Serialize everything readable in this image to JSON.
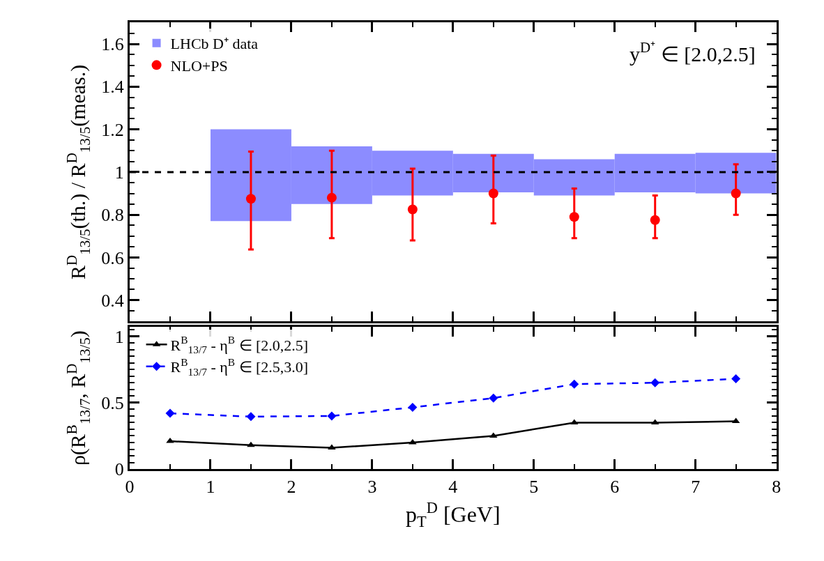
{
  "chart_data": [
    {
      "type": "scatter",
      "ylabel": "R$^{D}$$_{13/5}$(th.) / R$^{D}$$_{13/5}$(meas.)",
      "annotations": [
        "y$^{D⁺}$ ∈ [2.0,2.5]"
      ],
      "xlim": [
        0,
        8
      ],
      "xticks": [
        0,
        1,
        2,
        3,
        4,
        5,
        6,
        7,
        8
      ],
      "ylim": [
        0.3,
        1.7
      ],
      "yticks": [
        0.4,
        0.6,
        0.8,
        1,
        1.2,
        1.4,
        1.6
      ],
      "tick_labels": "y",
      "legend": "top left",
      "ref_lines": [
        {
          "axis": "y",
          "value": 1,
          "color": "#000000",
          "line_style": "dashed"
        }
      ],
      "series": [
        {
          "name": "LHCb D⁺ data",
          "type": "bar",
          "color": "#8c8cff",
          "x": [
            1.5,
            2.5,
            3.5,
            4.5,
            5.5,
            6.5,
            7.5
          ],
          "base": [
            0.77,
            0.85,
            0.89,
            0.905,
            0.89,
            0.905,
            0.9
          ],
          "values": [
            0.43,
            0.27,
            0.21,
            0.18,
            0.17,
            0.18,
            0.19
          ]
        },
        {
          "name": "NLO+PS",
          "type": "scatter",
          "color": "#ff0000",
          "marker": "circle",
          "x": [
            1.5,
            2.5,
            3.5,
            4.5,
            5.5,
            6.5,
            7.5
          ],
          "values": [
            0.875,
            0.88,
            0.825,
            0.9,
            0.79,
            0.775,
            0.9
          ],
          "errors": [
            [
              0.637,
              1.096
            ],
            [
              0.69,
              1.1
            ],
            [
              0.68,
              1.016
            ],
            [
              0.76,
              1.077
            ],
            [
              0.69,
              0.923
            ],
            [
              0.69,
              0.89
            ],
            [
              0.8,
              1.036
            ]
          ]
        }
      ]
    },
    {
      "type": "line",
      "xlabel": "p$_{T}$$^{D}$ [GeV]",
      "ylabel": "ρ(R$^{B}$$_{13/7}$, R$^{D}$$_{13/5}$)",
      "x": [
        0.5,
        1.5,
        2.5,
        3.5,
        4.5,
        5.5,
        6.5,
        7.5
      ],
      "xlim": [
        0,
        8
      ],
      "xticks": [
        0,
        1,
        2,
        3,
        4,
        5,
        6,
        7,
        8
      ],
      "ylim": [
        0,
        1.07
      ],
      "yticks": [
        0,
        0.5,
        1
      ],
      "legend": "top left",
      "series": [
        {
          "name": "R$^{B}$$_{13/7}$ - η$^{B}$ ∈ [2.0,2.5]",
          "color": "#000000",
          "marker": "triangle",
          "line_style": "solid",
          "values": [
            0.21,
            0.18,
            0.16,
            0.2,
            0.25,
            0.35,
            0.35,
            0.36
          ]
        },
        {
          "name": "R$^{B}$$_{13/7}$ - η$^{B}$ ∈ [2.5,3.0]",
          "color": "#0000ff",
          "marker": "diamond",
          "line_style": "dashed",
          "values": [
            0.42,
            0.395,
            0.4,
            0.465,
            0.535,
            0.64,
            0.65,
            0.68
          ]
        }
      ]
    }
  ]
}
